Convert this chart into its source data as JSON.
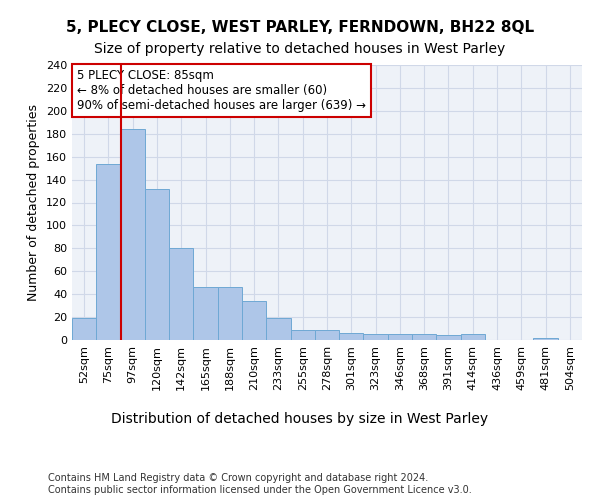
{
  "title": "5, PLECY CLOSE, WEST PARLEY, FERNDOWN, BH22 8QL",
  "subtitle": "Size of property relative to detached houses in West Parley",
  "xlabel": "Distribution of detached houses by size in West Parley",
  "ylabel": "Number of detached properties",
  "categories": [
    "52sqm",
    "75sqm",
    "97sqm",
    "120sqm",
    "142sqm",
    "165sqm",
    "188sqm",
    "210sqm",
    "233sqm",
    "255sqm",
    "278sqm",
    "301sqm",
    "323sqm",
    "346sqm",
    "368sqm",
    "391sqm",
    "414sqm",
    "436sqm",
    "459sqm",
    "481sqm",
    "504sqm"
  ],
  "values": [
    19,
    154,
    184,
    132,
    80,
    46,
    46,
    34,
    19,
    9,
    9,
    6,
    5,
    5,
    5,
    4,
    5,
    0,
    0,
    2,
    0
  ],
  "bar_color": "#aec6e8",
  "bar_edge_color": "#6fa8d4",
  "vline_color": "#cc0000",
  "vline_x": 1.5,
  "annotation_text": "5 PLECY CLOSE: 85sqm\n← 8% of detached houses are smaller (60)\n90% of semi-detached houses are larger (639) →",
  "annotation_box_color": "#ffffff",
  "annotation_box_edge_color": "#cc0000",
  "ylim": [
    0,
    240
  ],
  "yticks": [
    0,
    20,
    40,
    60,
    80,
    100,
    120,
    140,
    160,
    180,
    200,
    220,
    240
  ],
  "grid_color": "#d0d8e8",
  "background_color": "#eef2f8",
  "footer": "Contains HM Land Registry data © Crown copyright and database right 2024.\nContains public sector information licensed under the Open Government Licence v3.0.",
  "title_fontsize": 11,
  "subtitle_fontsize": 10,
  "xlabel_fontsize": 10,
  "ylabel_fontsize": 9,
  "tick_fontsize": 8,
  "annotation_fontsize": 8.5,
  "footer_fontsize": 7
}
